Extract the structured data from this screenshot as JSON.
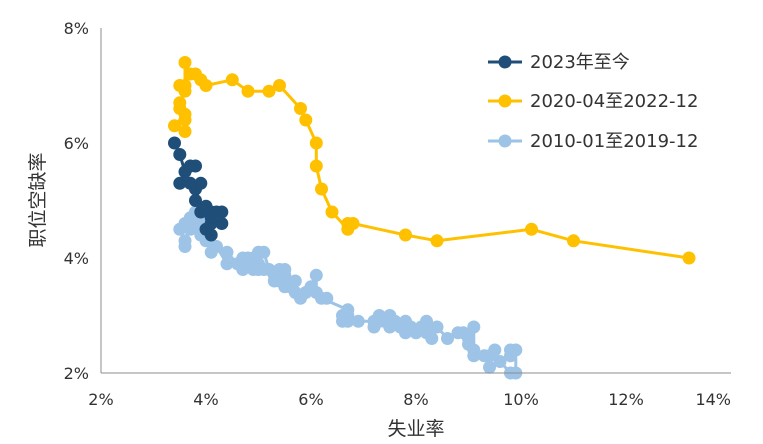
{
  "chart_data": {
    "type": "scatter",
    "xlabel": "失业率",
    "ylabel": "职位空缺率",
    "xlim": [
      2,
      14
    ],
    "ylim": [
      2,
      8
    ],
    "x_ticks": [
      "2%",
      "4%",
      "6%",
      "8%",
      "10%",
      "12%",
      "14%"
    ],
    "y_ticks": [
      "2%",
      "4%",
      "6%",
      "8%"
    ],
    "grid": false,
    "legend_position": "top-right",
    "series": [
      {
        "name": "2010-01至2019-12",
        "color": "#9DC3E6",
        "points": [
          [
            9.8,
            2.4
          ],
          [
            9.8,
            2.3
          ],
          [
            9.9,
            2.4
          ],
          [
            9.9,
            2.0
          ],
          [
            9.8,
            2.0
          ],
          [
            9.6,
            2.2
          ],
          [
            9.4,
            2.1
          ],
          [
            9.4,
            2.3
          ],
          [
            9.5,
            2.4
          ],
          [
            9.3,
            2.3
          ],
          [
            9.1,
            2.3
          ],
          [
            9.0,
            2.5
          ],
          [
            9.0,
            2.6
          ],
          [
            9.1,
            2.4
          ],
          [
            9.1,
            2.8
          ],
          [
            8.9,
            2.7
          ],
          [
            8.8,
            2.7
          ],
          [
            8.6,
            2.6
          ],
          [
            8.4,
            2.8
          ],
          [
            8.3,
            2.6
          ],
          [
            8.2,
            2.8
          ],
          [
            8.2,
            2.9
          ],
          [
            8.2,
            2.7
          ],
          [
            8.1,
            2.8
          ],
          [
            8.0,
            2.7
          ],
          [
            7.9,
            2.8
          ],
          [
            7.8,
            2.9
          ],
          [
            7.8,
            2.7
          ],
          [
            7.7,
            2.8
          ],
          [
            7.6,
            2.9
          ],
          [
            7.5,
            3.0
          ],
          [
            7.5,
            2.8
          ],
          [
            7.4,
            2.9
          ],
          [
            7.3,
            2.9
          ],
          [
            7.3,
            3.0
          ],
          [
            7.2,
            2.8
          ],
          [
            7.2,
            2.9
          ],
          [
            6.9,
            2.9
          ],
          [
            6.7,
            3.0
          ],
          [
            6.7,
            2.9
          ],
          [
            6.6,
            2.9
          ],
          [
            6.6,
            3.0
          ],
          [
            6.7,
            3.1
          ],
          [
            6.2,
            3.3
          ],
          [
            6.3,
            3.3
          ],
          [
            6.1,
            3.4
          ],
          [
            6.1,
            3.7
          ],
          [
            6.0,
            3.5
          ],
          [
            5.9,
            3.4
          ],
          [
            5.8,
            3.3
          ],
          [
            5.7,
            3.4
          ],
          [
            5.7,
            3.6
          ],
          [
            5.6,
            3.5
          ],
          [
            5.5,
            3.7
          ],
          [
            5.5,
            3.5
          ],
          [
            5.4,
            3.6
          ],
          [
            5.3,
            3.6
          ],
          [
            5.5,
            3.8
          ],
          [
            5.4,
            3.8
          ],
          [
            5.3,
            3.7
          ],
          [
            5.2,
            3.8
          ],
          [
            5.1,
            4.1
          ],
          [
            5.0,
            4.1
          ],
          [
            5.0,
            3.9
          ],
          [
            4.9,
            4.0
          ],
          [
            4.8,
            4.0
          ],
          [
            4.7,
            3.8
          ],
          [
            4.7,
            4.0
          ],
          [
            4.7,
            3.9
          ],
          [
            4.9,
            3.8
          ],
          [
            5.0,
            3.8
          ],
          [
            5.1,
            3.8
          ],
          [
            4.6,
            3.9
          ],
          [
            4.4,
            4.1
          ],
          [
            4.4,
            3.9
          ],
          [
            4.2,
            4.2
          ],
          [
            4.1,
            4.1
          ],
          [
            4.0,
            4.4
          ],
          [
            4.0,
            4.3
          ],
          [
            3.9,
            4.4
          ],
          [
            3.8,
            4.6
          ],
          [
            3.9,
            4.7
          ],
          [
            3.8,
            4.8
          ],
          [
            3.9,
            4.8
          ],
          [
            4.0,
            4.8
          ],
          [
            4.0,
            4.6
          ],
          [
            3.7,
            4.5
          ],
          [
            3.6,
            4.6
          ],
          [
            3.5,
            4.5
          ],
          [
            3.6,
            4.3
          ],
          [
            3.6,
            4.2
          ],
          [
            3.7,
            4.7
          ],
          [
            3.9,
            4.6
          ]
        ]
      },
      {
        "name": "2020-04至2022-12",
        "color": "#FFC000",
        "points": [
          [
            13.2,
            4.0
          ],
          [
            11.0,
            4.3
          ],
          [
            10.2,
            4.5
          ],
          [
            8.4,
            4.3
          ],
          [
            7.8,
            4.4
          ],
          [
            6.8,
            4.6
          ],
          [
            6.7,
            4.6
          ],
          [
            6.7,
            4.5
          ],
          [
            6.4,
            4.8
          ],
          [
            6.2,
            5.2
          ],
          [
            6.1,
            5.6
          ],
          [
            6.1,
            6.0
          ],
          [
            5.9,
            6.4
          ],
          [
            5.8,
            6.6
          ],
          [
            5.4,
            7.0
          ],
          [
            5.2,
            6.9
          ],
          [
            4.8,
            6.9
          ],
          [
            4.5,
            7.1
          ],
          [
            4.0,
            7.0
          ],
          [
            3.9,
            7.1
          ],
          [
            3.8,
            7.2
          ],
          [
            3.7,
            7.2
          ],
          [
            3.6,
            7.4
          ],
          [
            3.6,
            7.0
          ],
          [
            3.5,
            7.0
          ],
          [
            3.6,
            6.9
          ],
          [
            3.5,
            6.7
          ],
          [
            3.5,
            6.6
          ],
          [
            3.6,
            6.4
          ],
          [
            3.6,
            6.5
          ],
          [
            3.4,
            6.3
          ],
          [
            3.6,
            6.2
          ]
        ]
      },
      {
        "name": "2023年至今",
        "color": "#1F4E79",
        "points": [
          [
            3.4,
            6.0
          ],
          [
            3.5,
            5.8
          ],
          [
            3.6,
            5.5
          ],
          [
            3.7,
            5.6
          ],
          [
            3.8,
            5.6
          ],
          [
            3.5,
            5.3
          ],
          [
            3.7,
            5.3
          ],
          [
            3.8,
            5.2
          ],
          [
            3.9,
            5.3
          ],
          [
            3.8,
            5.0
          ],
          [
            4.0,
            4.9
          ],
          [
            3.9,
            4.8
          ],
          [
            4.1,
            4.8
          ],
          [
            4.2,
            4.8
          ],
          [
            4.1,
            4.6
          ],
          [
            4.3,
            4.6
          ],
          [
            4.3,
            4.8
          ],
          [
            4.1,
            4.7
          ],
          [
            4.0,
            4.5
          ],
          [
            4.1,
            4.4
          ]
        ]
      }
    ],
    "legend_order": [
      "2023年至今",
      "2020-04至2022-12",
      "2010-01至2019-12"
    ]
  }
}
